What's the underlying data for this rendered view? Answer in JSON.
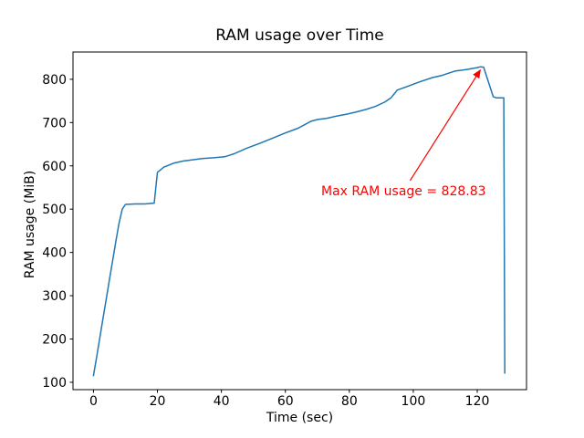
{
  "chart_data": {
    "type": "line",
    "title": "RAM usage over Time",
    "xlabel": "Time (sec)",
    "ylabel": "RAM usage (MiB)",
    "grid": false,
    "legend": null,
    "line_color": "#1f77b4",
    "line_width": 1.5,
    "axis_color": "#000000",
    "xlim": [
      -6.4,
      135.4
    ],
    "ylim": [
      83,
      863
    ],
    "x_ticks": [
      0,
      20,
      40,
      60,
      80,
      100,
      120
    ],
    "y_ticks": [
      100,
      200,
      300,
      400,
      500,
      600,
      700,
      800
    ],
    "series": [
      {
        "name": "RAM usage",
        "points": [
          [
            0,
            115
          ],
          [
            1,
            158
          ],
          [
            2,
            203
          ],
          [
            3,
            248
          ],
          [
            4,
            293
          ],
          [
            5,
            338
          ],
          [
            6,
            382
          ],
          [
            7,
            426
          ],
          [
            8,
            468
          ],
          [
            9,
            500
          ],
          [
            10,
            511
          ],
          [
            13,
            512
          ],
          [
            16,
            512
          ],
          [
            19,
            514
          ],
          [
            20,
            585
          ],
          [
            22,
            597
          ],
          [
            25,
            606
          ],
          [
            28,
            611
          ],
          [
            31,
            614
          ],
          [
            34,
            617
          ],
          [
            38,
            619
          ],
          [
            41,
            621
          ],
          [
            44,
            628
          ],
          [
            48,
            641
          ],
          [
            52,
            652
          ],
          [
            56,
            664
          ],
          [
            60,
            676
          ],
          [
            64,
            687
          ],
          [
            66,
            695
          ],
          [
            68,
            703
          ],
          [
            70,
            707
          ],
          [
            73,
            710
          ],
          [
            76,
            715
          ],
          [
            79,
            719
          ],
          [
            82,
            724
          ],
          [
            85,
            730
          ],
          [
            88,
            737
          ],
          [
            91,
            747
          ],
          [
            93,
            757
          ],
          [
            94,
            766
          ],
          [
            95,
            775
          ],
          [
            98,
            783
          ],
          [
            102,
            794
          ],
          [
            106,
            804
          ],
          [
            109,
            809
          ],
          [
            113,
            819
          ],
          [
            117,
            823
          ],
          [
            120,
            827
          ],
          [
            121,
            828.83
          ],
          [
            122,
            828
          ],
          [
            125,
            760
          ],
          [
            126,
            757
          ],
          [
            128.3,
            757
          ],
          [
            128.6,
            121
          ]
        ]
      }
    ],
    "max_value": 828.83,
    "annotation": {
      "text": "Max RAM usage = 828.83",
      "color": "#ff0000",
      "text_xy": [
        71,
        560
      ],
      "arrow_tail": [
        99,
        566
      ],
      "arrow_head": [
        121,
        822
      ]
    }
  }
}
